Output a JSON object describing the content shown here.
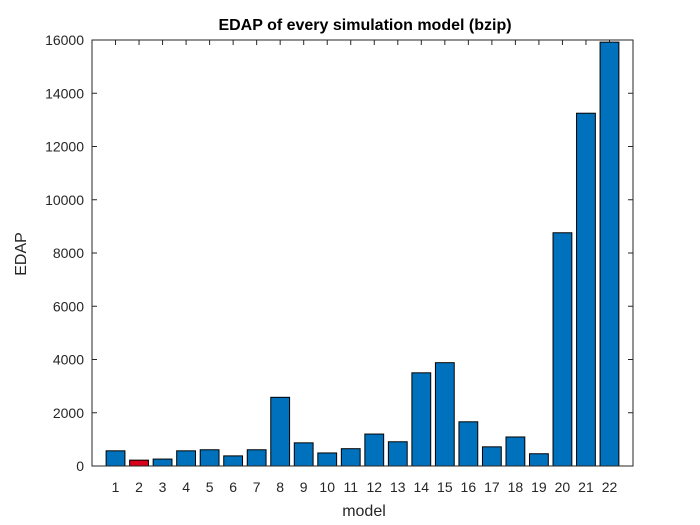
{
  "chart_data": {
    "type": "bar",
    "title": "EDAP of every simulation model (bzip)",
    "xlabel": "model",
    "ylabel": "EDAP",
    "categories": [
      "1",
      "2",
      "3",
      "4",
      "5",
      "6",
      "7",
      "8",
      "9",
      "10",
      "11",
      "12",
      "13",
      "14",
      "15",
      "16",
      "17",
      "18",
      "19",
      "20",
      "21",
      "22"
    ],
    "values": [
      570,
      220,
      260,
      570,
      610,
      380,
      610,
      2580,
      870,
      490,
      650,
      1200,
      910,
      3500,
      3880,
      1660,
      720,
      1090,
      460,
      8760,
      13250,
      15920
    ],
    "highlight_index": 1,
    "ylim": [
      0,
      16000
    ],
    "yticks": [
      0,
      2000,
      4000,
      6000,
      8000,
      10000,
      12000,
      14000,
      16000
    ],
    "grid": false,
    "colors": {
      "bar": "#0072BD",
      "highlight": "#D9001B",
      "edge": "#000000"
    }
  }
}
